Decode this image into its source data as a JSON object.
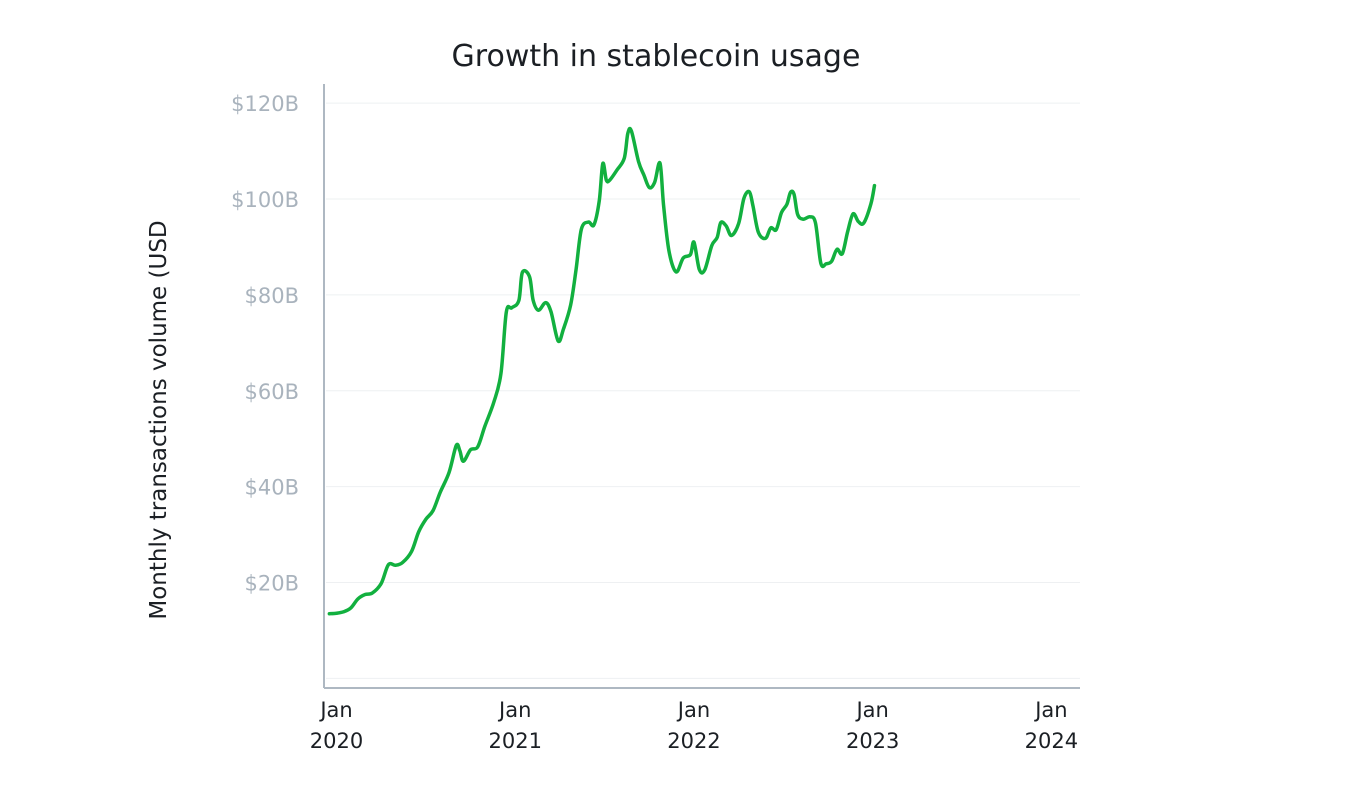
{
  "chart_data": {
    "type": "line",
    "title": "Growth in stablecoin usage",
    "xlabel": "",
    "ylabel": "Monthly transactions volume (USD",
    "ylim": [
      -2,
      124
    ],
    "yticks": [
      {
        "value": 120,
        "label": "$120B"
      },
      {
        "value": 100,
        "label": "$100B"
      },
      {
        "value": 80,
        "label": "$80B"
      },
      {
        "value": 60,
        "label": "$60B"
      },
      {
        "value": 40,
        "label": "$40B"
      },
      {
        "value": 20,
        "label": "$20B"
      }
    ],
    "grid_values": [
      120,
      100,
      80,
      60,
      40,
      20,
      0
    ],
    "xticks": [
      {
        "value": 2020.0,
        "line1": "Jan",
        "line2": "2020"
      },
      {
        "value": 2021.0,
        "line1": "Jan",
        "line2": "2021"
      },
      {
        "value": 2022.0,
        "line1": "Jan",
        "line2": "2022"
      },
      {
        "value": 2023.0,
        "line1": "Jan",
        "line2": "2023"
      },
      {
        "value": 2024.0,
        "line1": "Jan",
        "line2": "2024"
      }
    ],
    "xlim": [
      2019.93,
      2024.16
    ],
    "grid": true,
    "legend": "none",
    "colors": {
      "line": "#12b03f",
      "grid": "#eef0f2",
      "axis": "#aeb8c2",
      "ytick": "#a9b3bd",
      "text": "#1b1f24"
    },
    "series": [
      {
        "values": [
          [
            2019.96,
            13.5
          ],
          [
            2020.0,
            13.6
          ],
          [
            2020.04,
            13.9
          ],
          [
            2020.08,
            14.7
          ],
          [
            2020.12,
            16.6
          ],
          [
            2020.16,
            17.5
          ],
          [
            2020.2,
            17.8
          ],
          [
            2020.25,
            19.8
          ],
          [
            2020.29,
            23.7
          ],
          [
            2020.33,
            23.6
          ],
          [
            2020.37,
            24.2
          ],
          [
            2020.42,
            26.5
          ],
          [
            2020.46,
            30.6
          ],
          [
            2020.5,
            33.2
          ],
          [
            2020.54,
            35.0
          ],
          [
            2020.58,
            38.8
          ],
          [
            2020.63,
            43.0
          ],
          [
            2020.67,
            48.6
          ],
          [
            2020.69,
            47.5
          ],
          [
            2020.71,
            45.3
          ],
          [
            2020.75,
            47.7
          ],
          [
            2020.79,
            48.3
          ],
          [
            2020.83,
            52.6
          ],
          [
            2020.88,
            57.6
          ],
          [
            2020.92,
            63.6
          ],
          [
            2020.95,
            76.4
          ],
          [
            2020.98,
            77.3
          ],
          [
            2021.02,
            78.8
          ],
          [
            2021.04,
            84.7
          ],
          [
            2021.08,
            83.8
          ],
          [
            2021.1,
            78.9
          ],
          [
            2021.13,
            76.8
          ],
          [
            2021.17,
            78.4
          ],
          [
            2021.2,
            76.5
          ],
          [
            2021.24,
            70.4
          ],
          [
            2021.27,
            72.9
          ],
          [
            2021.31,
            77.9
          ],
          [
            2021.34,
            85.2
          ],
          [
            2021.37,
            93.7
          ],
          [
            2021.41,
            95.2
          ],
          [
            2021.44,
            94.6
          ],
          [
            2021.47,
            99.6
          ],
          [
            2021.49,
            107.4
          ],
          [
            2021.51,
            103.9
          ],
          [
            2021.53,
            104.0
          ],
          [
            2021.57,
            106.1
          ],
          [
            2021.61,
            108.5
          ],
          [
            2021.63,
            113.7
          ],
          [
            2021.65,
            114.2
          ],
          [
            2021.69,
            107.8
          ],
          [
            2021.72,
            105.0
          ],
          [
            2021.75,
            102.4
          ],
          [
            2021.78,
            103.5
          ],
          [
            2021.81,
            107.5
          ],
          [
            2021.83,
            98.7
          ],
          [
            2021.86,
            89.2
          ],
          [
            2021.9,
            84.8
          ],
          [
            2021.94,
            87.7
          ],
          [
            2021.98,
            88.4
          ],
          [
            2022.0,
            91.0
          ],
          [
            2022.03,
            85.3
          ],
          [
            2022.06,
            85.2
          ],
          [
            2022.1,
            90.3
          ],
          [
            2022.13,
            92.0
          ],
          [
            2022.15,
            95.1
          ],
          [
            2022.18,
            94.4
          ],
          [
            2022.21,
            92.4
          ],
          [
            2022.25,
            94.9
          ],
          [
            2022.28,
            100.2
          ],
          [
            2022.31,
            101.5
          ],
          [
            2022.33,
            98.6
          ],
          [
            2022.36,
            93.1
          ],
          [
            2022.4,
            91.8
          ],
          [
            2022.43,
            94.0
          ],
          [
            2022.46,
            93.6
          ],
          [
            2022.49,
            97.2
          ],
          [
            2022.52,
            98.9
          ],
          [
            2022.54,
            101.4
          ],
          [
            2022.56,
            101.0
          ],
          [
            2022.58,
            96.8
          ],
          [
            2022.61,
            95.8
          ],
          [
            2022.65,
            96.3
          ],
          [
            2022.68,
            95.0
          ],
          [
            2022.71,
            86.6
          ],
          [
            2022.74,
            86.5
          ],
          [
            2022.77,
            87.0
          ],
          [
            2022.8,
            89.5
          ],
          [
            2022.83,
            88.6
          ],
          [
            2022.86,
            93.2
          ],
          [
            2022.89,
            96.9
          ],
          [
            2022.92,
            95.3
          ],
          [
            2022.95,
            95.0
          ],
          [
            2022.99,
            99.0
          ],
          [
            2023.01,
            102.8
          ]
        ]
      }
    ]
  }
}
